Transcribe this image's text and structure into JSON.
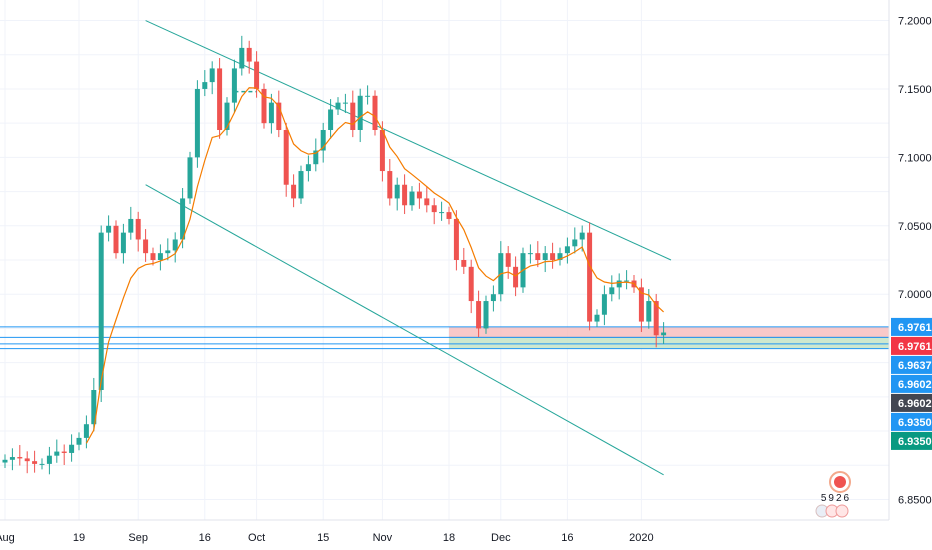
{
  "chart_data": {
    "type": "candlestick",
    "colors": {
      "up": "#26a69a",
      "down": "#ef5350",
      "ma": "#f57c00",
      "channel": "#26a69a",
      "hline": "#2196f3",
      "grid": "#f0f3fa",
      "stop_zone": "#f8bbbb",
      "target_zone": "#c8e6c9"
    },
    "x_axis": {
      "labels": [
        "Aug",
        "19",
        "Sep",
        "16",
        "Oct",
        "15",
        "Nov",
        "18",
        "Dec",
        "16",
        "2020"
      ],
      "label_index": [
        0,
        10,
        18,
        27,
        34,
        43,
        51,
        60,
        67,
        76,
        86
      ]
    },
    "y_axis": {
      "min": 6.835,
      "max": 7.215,
      "ticks": [
        "7.2000",
        "7.1500",
        "7.1000",
        "7.0500",
        "7.0000",
        "6.8500"
      ]
    },
    "horizontal_lines": [
      6.9761,
      6.9685,
      6.9637,
      6.9602
    ],
    "price_badges": [
      {
        "label": "6.9761",
        "value": 6.9761,
        "color": "#2196f3"
      },
      {
        "label": "6.9761",
        "value": 6.9761,
        "color": "#f23645"
      },
      {
        "label": "6.9637",
        "value": 6.9637,
        "color": "#2196f3"
      },
      {
        "label": "6.9602",
        "value": 6.9602,
        "color": "#2196f3"
      },
      {
        "label": "6.9602",
        "value": 6.9602,
        "color": "#434651"
      },
      {
        "label": "6.9350",
        "value": 6.935,
        "color": "#2196f3"
      },
      {
        "label": "6.9350",
        "value": 6.935,
        "color": "#089981"
      }
    ],
    "position": {
      "start_index": 60,
      "entry": 6.9685,
      "stop": 6.9761,
      "target": 6.9602
    },
    "channel_upper": {
      "from": [
        19,
        7.2
      ],
      "to": [
        90,
        7.025
      ]
    },
    "channel_lower": {
      "from": [
        19,
        7.08
      ],
      "to": [
        89,
        6.868
      ]
    },
    "dashed_level": {
      "from": [
        31,
        7.148
      ],
      "to": [
        34,
        7.148
      ]
    },
    "closes": [
      6.879,
      6.881,
      6.88,
      6.878,
      6.876,
      6.876,
      6.882,
      6.885,
      6.884,
      6.89,
      6.895,
      6.905,
      6.93,
      7.045,
      7.05,
      7.03,
      7.045,
      7.055,
      7.04,
      7.03,
      7.025,
      7.03,
      7.032,
      7.04,
      7.07,
      7.1,
      7.15,
      7.155,
      7.165,
      7.12,
      7.14,
      7.165,
      7.18,
      7.17,
      7.15,
      7.125,
      7.14,
      7.12,
      7.08,
      7.07,
      7.09,
      7.095,
      7.105,
      7.12,
      7.135,
      7.14,
      7.14,
      7.12,
      7.145,
      7.145,
      7.12,
      7.09,
      7.07,
      7.08,
      7.065,
      7.075,
      7.07,
      7.065,
      7.06,
      7.06,
      7.055,
      7.025,
      7.02,
      6.995,
      6.975,
      6.995,
      7.0,
      7.03,
      7.02,
      7.005,
      7.03,
      7.03,
      7.025,
      7.03,
      7.025,
      7.03,
      7.035,
      7.04,
      7.045,
      6.98,
      6.985,
      7.0,
      7.005,
      7.01,
      7.01,
      7.005,
      6.98,
      6.995,
      6.97,
      6.972
    ]
  }
}
